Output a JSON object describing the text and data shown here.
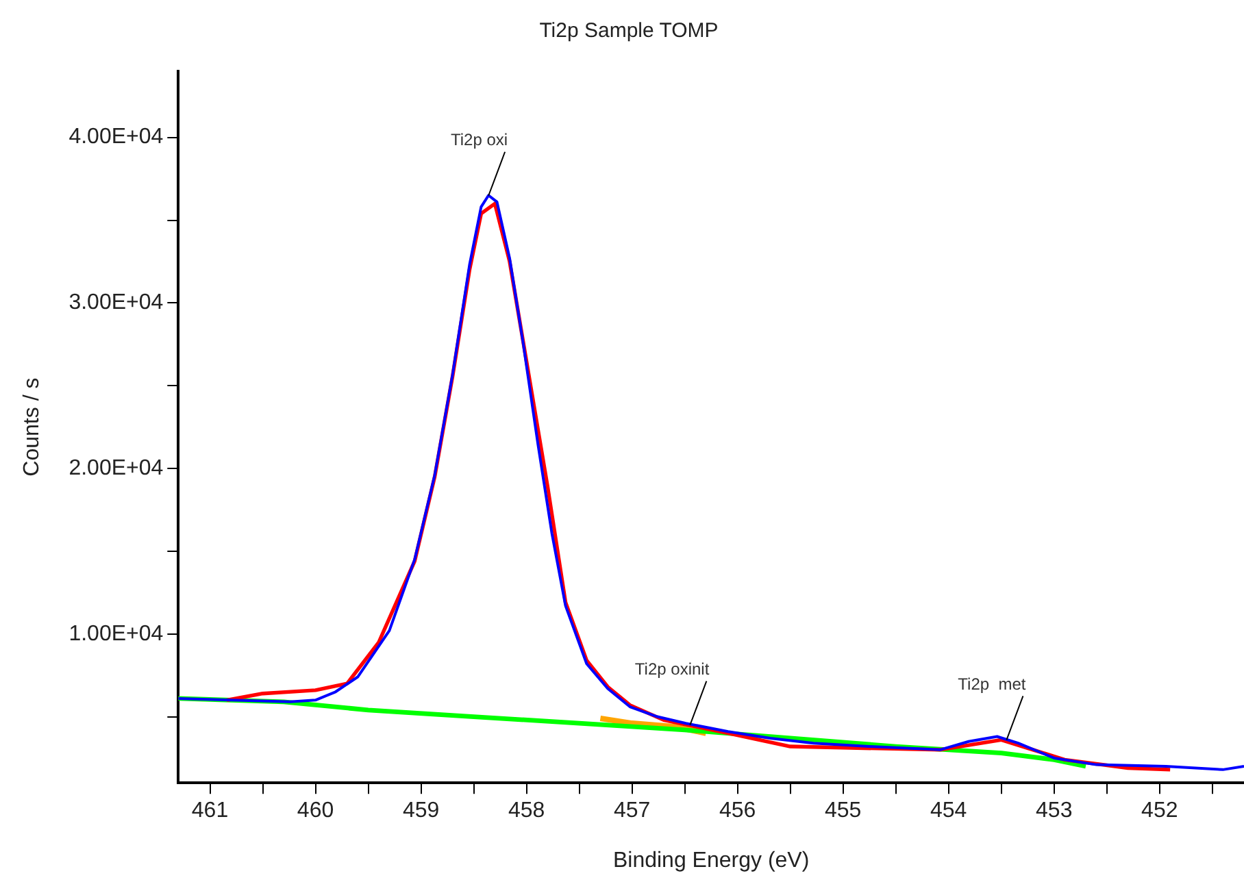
{
  "chart_data": {
    "type": "line",
    "title": "Ti2p Sample TOMP",
    "xlabel": "Binding Energy (eV)",
    "ylabel": "Counts / s",
    "xlim": [
      461.3,
      451.2
    ],
    "ylim": [
      1000,
      44000
    ],
    "xticks": [
      461,
      {
        "value": 460.5,
        "label": null
      },
      460,
      {
        "value": 459.5,
        "label": null
      },
      459,
      {
        "value": 458.5,
        "label": null
      },
      458,
      {
        "value": 457.5,
        "label": null
      },
      457,
      {
        "value": 456.5,
        "label": null
      },
      456,
      {
        "value": 455.5,
        "label": null
      },
      455,
      {
        "value": 454.5,
        "label": null
      },
      454,
      {
        "value": 453.5,
        "label": null
      },
      453,
      {
        "value": 452.5,
        "label": null
      },
      452,
      {
        "value": 451.5,
        "label": null
      }
    ],
    "yticks": [
      {
        "value": 5000,
        "label": null
      },
      {
        "value": 10000,
        "label": "1.00E+04"
      },
      {
        "value": 15000,
        "label": null
      },
      {
        "value": 20000,
        "label": "2.00E+04"
      },
      {
        "value": 25000,
        "label": null
      },
      {
        "value": 30000,
        "label": "3.00E+04"
      },
      {
        "value": 35000,
        "label": null
      },
      {
        "value": 40000,
        "label": "4.00E+04"
      }
    ],
    "grid": false,
    "legend": false,
    "marker": "none",
    "line_style": "solid",
    "series": [
      {
        "color": "#0000ff",
        "x": [
          461.3,
          460.24,
          460.0,
          459.81,
          459.6,
          459.3,
          459.06,
          458.87,
          458.7,
          458.54,
          458.43,
          458.36,
          458.28,
          458.16,
          458.03,
          457.89,
          457.76,
          457.63,
          457.43,
          457.23,
          457.02,
          456.76,
          456.49,
          456.09,
          455.69,
          455.28,
          454.75,
          454.08,
          453.81,
          453.54,
          453.34,
          453.0,
          452.6,
          451.94,
          451.4,
          451.2
        ],
        "values": [
          6100,
          5900,
          6000,
          6500,
          7400,
          10200,
          14500,
          19600,
          25700,
          32300,
          35800,
          36500,
          36100,
          32700,
          27500,
          21400,
          16100,
          11700,
          8200,
          6700,
          5600,
          5000,
          4600,
          4100,
          3700,
          3400,
          3200,
          3000,
          3500,
          3800,
          3400,
          2500,
          2100,
          2000,
          1800,
          2000
        ]
      },
      {
        "color": "#ff0000",
        "x": [
          460.84,
          460.5,
          460.0,
          459.7,
          459.4,
          459.06,
          458.87,
          458.7,
          458.54,
          458.43,
          458.3,
          458.16,
          458.03,
          457.8,
          457.63,
          457.43,
          457.23,
          457.02,
          456.7,
          456.09,
          455.5,
          454.8,
          454.08,
          453.5,
          453.2,
          452.9,
          452.3,
          451.9
        ],
        "values": [
          6000,
          6400,
          6600,
          7000,
          9500,
          14400,
          19500,
          25600,
          32000,
          35400,
          36000,
          32500,
          27600,
          18900,
          11900,
          8400,
          6800,
          5700,
          4800,
          4000,
          3200,
          3100,
          3000,
          3600,
          3000,
          2400,
          1900,
          1800
        ]
      },
      {
        "color": "#00ff00",
        "x": [
          461.3,
          460.3,
          459.5,
          458.5,
          457.5,
          456.5,
          455.5,
          454.5,
          453.5,
          453.0,
          452.7
        ],
        "values": [
          6100,
          5900,
          5400,
          5000,
          4600,
          4200,
          3700,
          3200,
          2800,
          2400,
          2000
        ]
      },
      {
        "color": "#ffa500",
        "x": [
          457.3,
          457.0,
          456.6,
          456.3
        ],
        "values": [
          4900,
          4600,
          4400,
          4000
        ]
      }
    ],
    "annotations": [
      {
        "text": "Ti2p oxi",
        "x": 458.36,
        "y": 36480
      },
      {
        "text": "Ti2p oxinit",
        "x": 456.45,
        "y": 4500
      },
      {
        "text": "Ti2p  met",
        "x": 453.45,
        "y": 3600
      }
    ]
  }
}
